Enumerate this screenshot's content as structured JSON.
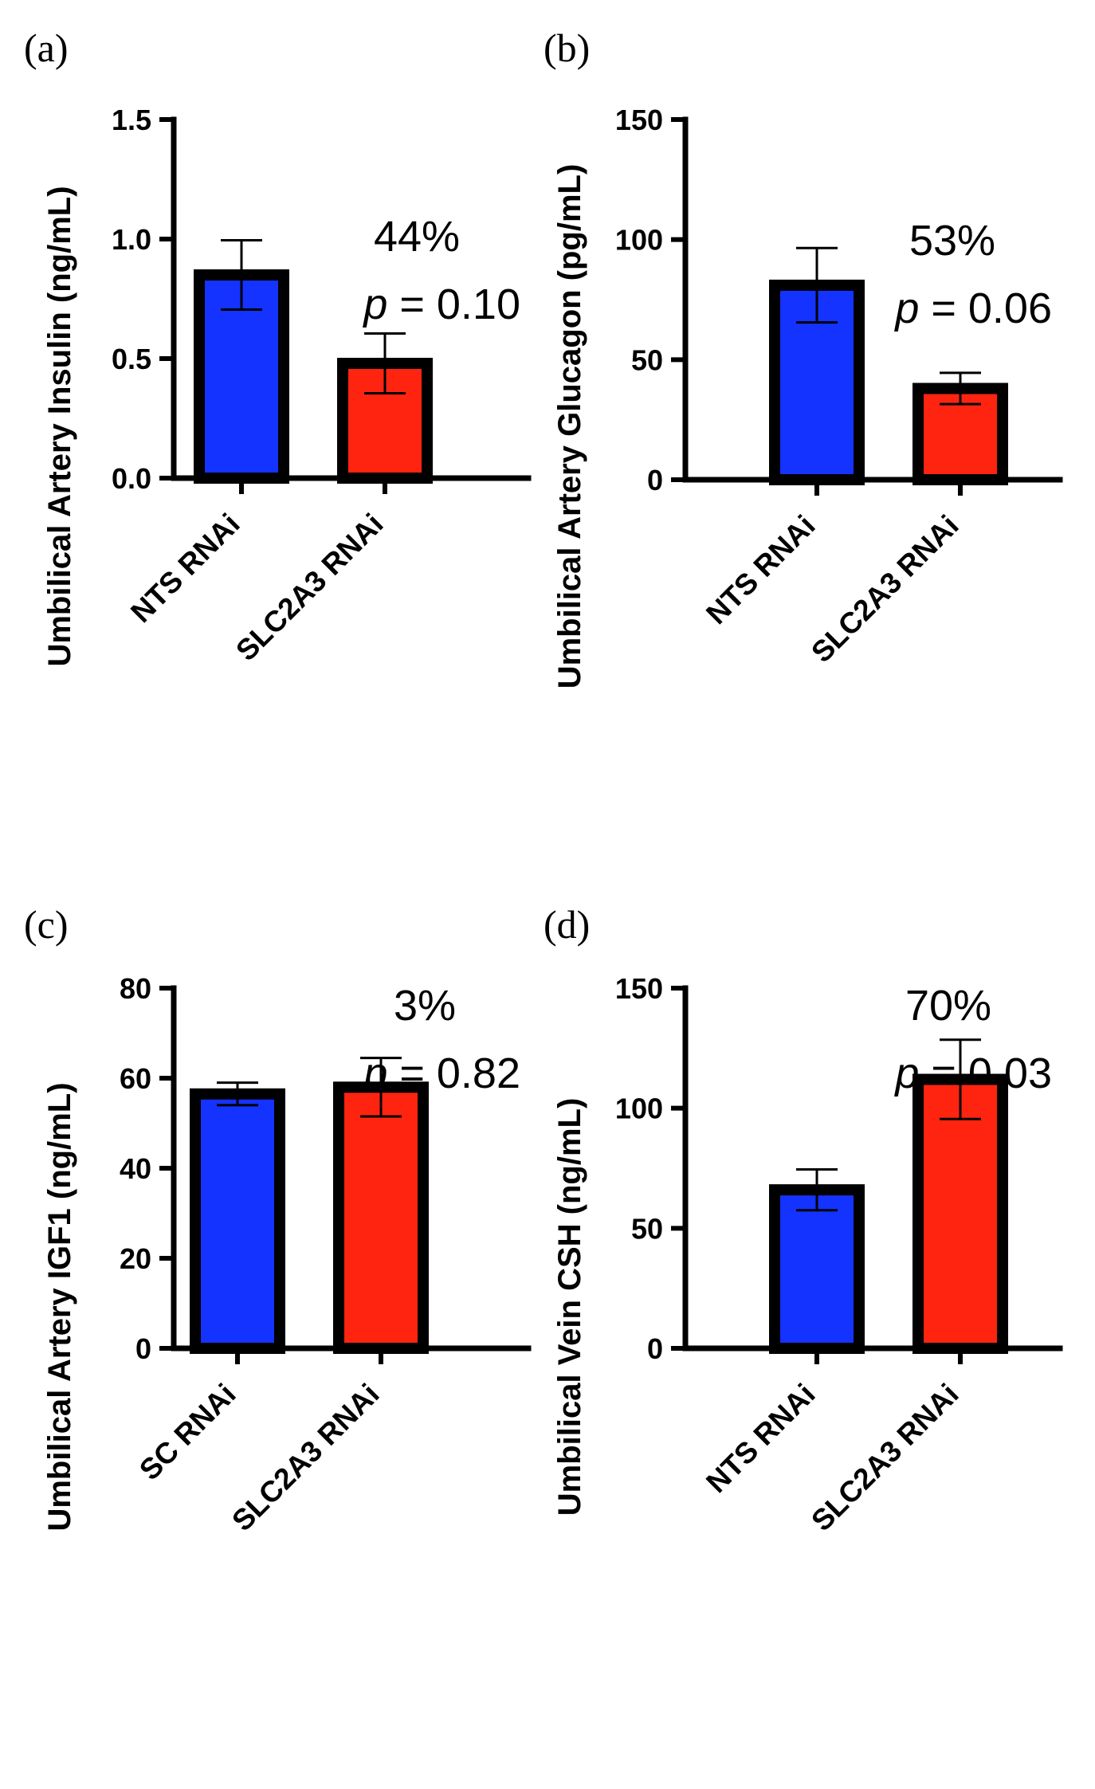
{
  "chart_data": [
    {
      "type": "bar",
      "panel_label": "(a)",
      "ylabel": "Umbilical Artery Insulin (ng/mL)",
      "categories": [
        "NTS RNAi",
        "SLC2A3 RNAi"
      ],
      "values": [
        0.85,
        0.48
      ],
      "errors": [
        0.145,
        0.125
      ],
      "colors": [
        "#1433FF",
        "#FF2410"
      ],
      "ylim": [
        0,
        1.5
      ],
      "yticks": [
        0,
        0.5,
        1.0,
        1.5
      ],
      "ytick_labels": [
        "0.0",
        "0.5",
        "1.0",
        "1.5"
      ],
      "annotation": {
        "percent": "44%",
        "p_symbol": "p",
        "p_value": " = 0.10"
      }
    },
    {
      "type": "bar",
      "panel_label": "(b)",
      "ylabel": "Umbilical Artery Glucagon (pg/mL)",
      "categories": [
        "NTS RNAi",
        "SLC2A3 RNAi"
      ],
      "values": [
        81,
        38
      ],
      "errors": [
        15.5,
        6.5
      ],
      "colors": [
        "#1433FF",
        "#FF2410"
      ],
      "ylim": [
        0,
        150
      ],
      "yticks": [
        0,
        50,
        100,
        150
      ],
      "ytick_labels": [
        "0",
        "50",
        "100",
        "150"
      ],
      "annotation": {
        "percent": "53%",
        "p_symbol": "p",
        "p_value": " = 0.06"
      }
    },
    {
      "type": "bar",
      "panel_label": "(c)",
      "ylabel": "Umbilical Artery IGF1 (ng/mL)",
      "categories": [
        "SC RNAi",
        "SLC2A3 RNAi"
      ],
      "values": [
        56.5,
        58
      ],
      "errors": [
        2.5,
        6.5
      ],
      "colors": [
        "#1433FF",
        "#FF2410"
      ],
      "ylim": [
        0,
        80
      ],
      "yticks": [
        0,
        20,
        40,
        60,
        80
      ],
      "ytick_labels": [
        "0",
        "20",
        "40",
        "60",
        "80"
      ],
      "annotation": {
        "percent": "3%",
        "p_symbol": "p",
        "p_value": " = 0.82"
      }
    },
    {
      "type": "bar",
      "panel_label": "(d)",
      "ylabel": "Umbilical Vein CSH (ng/mL)",
      "categories": [
        "NTS RNAi",
        "SLC2A3 RNAi"
      ],
      "values": [
        66,
        112
      ],
      "errors": [
        8.5,
        16.5
      ],
      "colors": [
        "#1433FF",
        "#FF2410"
      ],
      "ylim": [
        0,
        150
      ],
      "yticks": [
        0,
        50,
        100,
        150
      ],
      "ytick_labels": [
        "0",
        "50",
        "100",
        "150"
      ],
      "annotation": {
        "percent": "70%",
        "p_symbol": "p",
        "p_value": " = 0.03"
      }
    }
  ]
}
